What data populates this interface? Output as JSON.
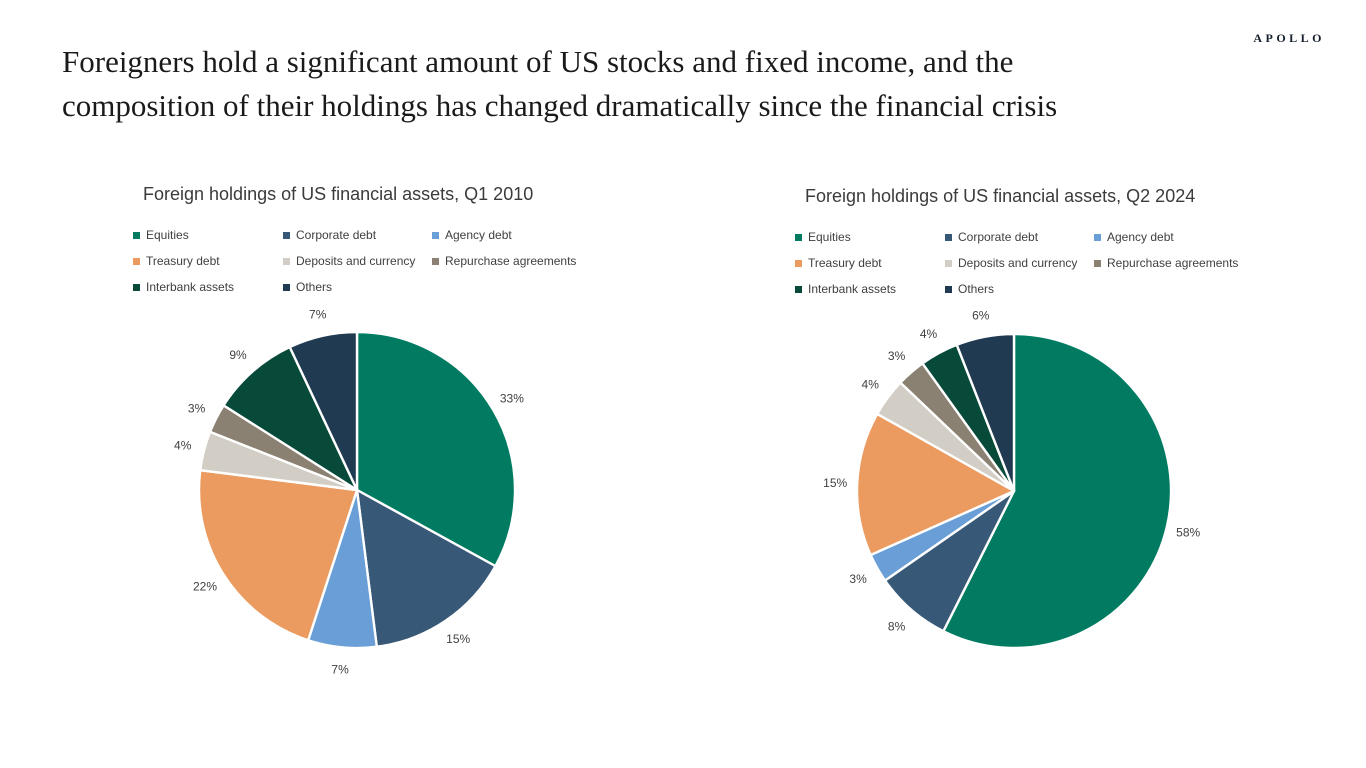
{
  "page": {
    "logo": "APOLLO",
    "title_lines": [
      "Foreigners hold a significant amount of US stocks and fixed income, and the",
      "composition of their holdings has changed dramatically since the financial crisis"
    ]
  },
  "style": {
    "title_color": "#1a1a1a",
    "chart_title_color": "#3b3b3b",
    "label_color": "#404040",
    "slice_stroke": "#ffffff",
    "background": "#ffffff"
  },
  "chart_data": [
    {
      "type": "pie",
      "title": "Foreign holdings of US financial assets, Q1 2010",
      "unit": "%",
      "legend_position": "top",
      "legend_columns": 3,
      "start_angle_deg": 0,
      "direction": "clockwise",
      "categories": [
        "Equities",
        "Corporate debt",
        "Agency debt",
        "Treasury debt",
        "Deposits and currency",
        "Repurchase agreements",
        "Interbank assets",
        "Others"
      ],
      "values": [
        33,
        15,
        7,
        22,
        4,
        3,
        9,
        7
      ],
      "labels": [
        "33%",
        "15%",
        "7%",
        "22%",
        "4%",
        "3%",
        "9%",
        "7%"
      ],
      "colors": [
        "#007B61",
        "#375877",
        "#6A9ED6",
        "#EC9B60",
        "#D2CDC5",
        "#8B8173",
        "#074A3A",
        "#203A52"
      ]
    },
    {
      "type": "pie",
      "title": "Foreign holdings of US financial assets, Q2 2024",
      "unit": "%",
      "legend_position": "top",
      "legend_columns": 3,
      "start_angle_deg": 0,
      "direction": "clockwise",
      "categories": [
        "Equities",
        "Corporate debt",
        "Agency debt",
        "Treasury debt",
        "Deposits and currency",
        "Repurchase agreements",
        "Interbank assets",
        "Others"
      ],
      "values": [
        58,
        8,
        3,
        15,
        4,
        3,
        4,
        6
      ],
      "labels": [
        "58%",
        "8%",
        "3%",
        "15%",
        "4%",
        "3%",
        "4%",
        "6%"
      ],
      "colors": [
        "#007B61",
        "#375877",
        "#6A9ED6",
        "#EC9B60",
        "#D2CDC5",
        "#8B8173",
        "#074A3A",
        "#203A52"
      ]
    }
  ]
}
